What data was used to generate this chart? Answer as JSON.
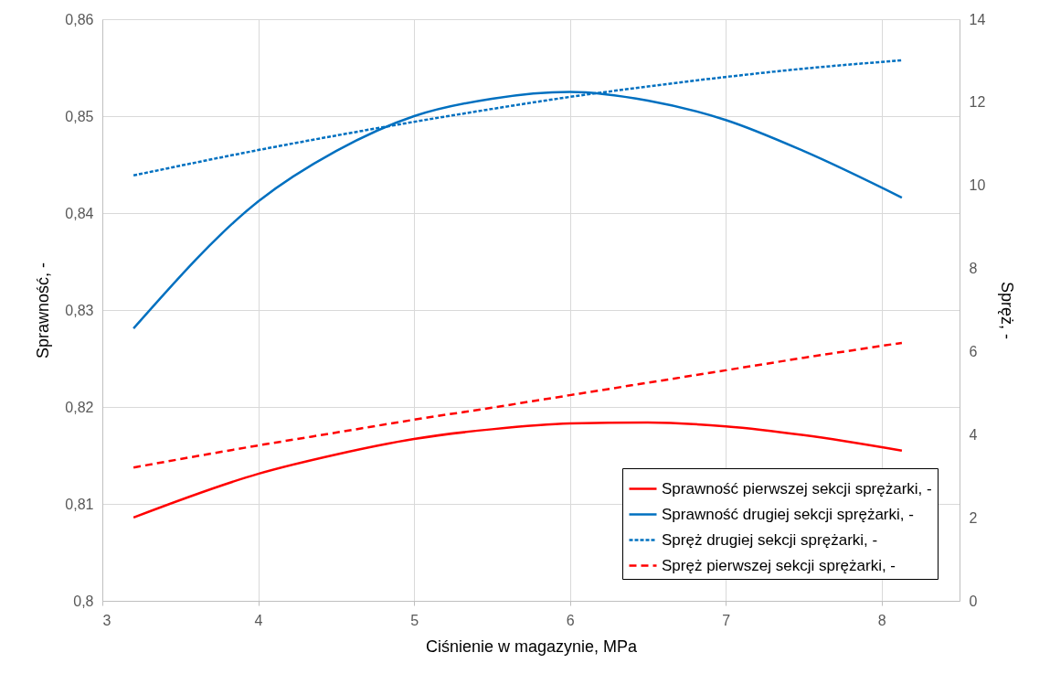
{
  "chart_data": {
    "type": "line",
    "xlabel": "Ciśnienie w magazynie, MPa",
    "ylabel": "Sprawność, -",
    "y2label": "Spręż, -",
    "xlim": [
      3,
      8.5
    ],
    "xticks": [
      3,
      4,
      5,
      6,
      7,
      8
    ],
    "ylim": [
      0.8,
      0.86
    ],
    "yticks": [
      {
        "value": 0.8,
        "label": "0,8"
      },
      {
        "value": 0.81,
        "label": "0,81"
      },
      {
        "value": 0.82,
        "label": "0,82"
      },
      {
        "value": 0.83,
        "label": "0,83"
      },
      {
        "value": 0.84,
        "label": "0,84"
      },
      {
        "value": 0.85,
        "label": "0,85"
      },
      {
        "value": 0.86,
        "label": "0,86"
      }
    ],
    "y2lim": [
      0,
      14
    ],
    "y2ticks": [
      0,
      2,
      4,
      6,
      8,
      10,
      12,
      14
    ],
    "grid": true,
    "legend": "bottom right",
    "x": [
      3.2,
      4,
      4.5,
      5,
      5.5,
      6,
      6.5,
      7,
      7.5,
      8.13
    ],
    "series": [
      {
        "name": "Sprawność pierwszej sekcji sprężarki, -",
        "color": "#ff0000",
        "line_style": "solid",
        "values": [
          0.8086,
          0.8131,
          0.8151,
          0.8167,
          0.8177,
          0.8183,
          0.8184,
          0.818,
          0.8171,
          0.8155
        ]
      },
      {
        "name": "Sprawność drugiej sekcji sprężarki, -",
        "color": "#0070c0",
        "line_style": "solid",
        "values": [
          0.8281,
          0.8412,
          0.8464,
          0.85,
          0.8518,
          0.8525,
          0.8516,
          0.8496,
          0.8464,
          0.8416
        ]
      },
      {
        "name": "Spręż drugiej sekcji sprężarki, -",
        "color": "#0070c0",
        "line_style": "dotted",
        "axis": "y2",
        "values": [
          10.24,
          10.85,
          11.2,
          11.53,
          11.84,
          12.13,
          12.38,
          12.61,
          12.81,
          13.01
        ]
      },
      {
        "name": "Spręż pierwszej sekcji sprężarki, -",
        "color": "#ff0000",
        "line_style": "dashed",
        "axis": "y2",
        "values": [
          3.21,
          3.74,
          4.05,
          4.36,
          4.65,
          4.95,
          5.25,
          5.55,
          5.85,
          6.21
        ]
      }
    ]
  }
}
